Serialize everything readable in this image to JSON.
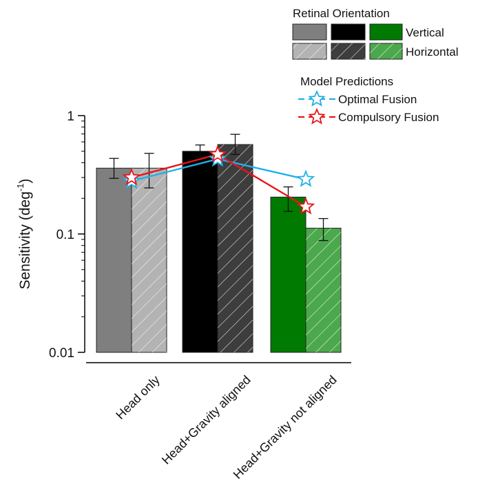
{
  "chart_data": {
    "type": "bar",
    "yscale": "log",
    "ylabel": "Sensitivity (deg",
    "ylabel_sup": "-1",
    "ylabel_close": ")",
    "ylim": [
      0.01,
      1
    ],
    "yticks": [
      {
        "value": 1,
        "label": "1"
      },
      {
        "value": 0.1,
        "label": "0.1"
      },
      {
        "value": 0.01,
        "label": "0.01"
      }
    ],
    "categories": [
      "Head only",
      "Head+Gravity aligned",
      "Head+Gravity not aligned"
    ],
    "series": [
      {
        "name": "Vertical",
        "values": [
          0.36,
          0.5,
          0.205
        ],
        "err_low": [
          0.295,
          0.445,
          0.155
        ],
        "err_high": [
          0.435,
          0.565,
          0.25
        ]
      },
      {
        "name": "Horizontal",
        "values": [
          0.36,
          0.57,
          0.112
        ],
        "err_low": [
          0.245,
          0.47,
          0.088
        ],
        "err_high": [
          0.48,
          0.695,
          0.135
        ]
      }
    ],
    "bar_colors": [
      {
        "solid": "#7f7f7f",
        "hatched": "#b3b3b3"
      },
      {
        "solid": "#000000",
        "hatched": "#3d3d3d"
      },
      {
        "solid": "#007a00",
        "hatched": "#4ca84c"
      }
    ],
    "legend_orientation": {
      "title": "Retinal Orientation",
      "rows": [
        "Vertical",
        "Horizontal"
      ]
    },
    "legend_model": {
      "title": "Model Predictions",
      "items": [
        "Optimal Fusion",
        "Compulsory Fusion"
      ]
    },
    "model_predictions": [
      {
        "name": "Optimal Fusion",
        "color": "#1fb0e8",
        "values": [
          0.28,
          0.43,
          0.29
        ]
      },
      {
        "name": "Compulsory Fusion",
        "color": "#e8141a",
        "values": [
          0.3,
          0.47,
          0.17
        ]
      }
    ],
    "legend_placement": "top-right",
    "grid": false
  }
}
